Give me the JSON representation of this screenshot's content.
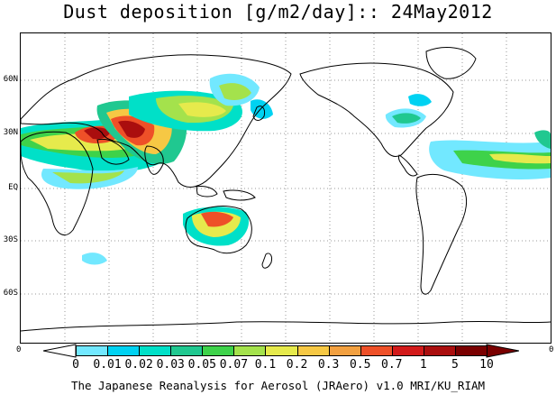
{
  "title": "Dust deposition [g/m2/day]:: 24May2012",
  "credit": "The Japanese Reanalysis for Aerosol (JRAero) v1.0 MRI/KU_RIAM",
  "lat_labels": [
    "60N",
    "30N",
    "EQ",
    "30S",
    "60S"
  ],
  "corner_labels": {
    "left": "0",
    "right": "0"
  },
  "colorbar": {
    "ticks": [
      "0",
      "0.01",
      "0.02",
      "0.03",
      "0.05",
      "0.07",
      "0.1",
      "0.2",
      "0.3",
      "0.5",
      "0.7",
      "1",
      "5",
      "10"
    ],
    "colors": [
      "#ffffff",
      "#72e8ff",
      "#00d2f2",
      "#00e0c8",
      "#20c890",
      "#3ed24a",
      "#a4e24c",
      "#e6ea4c",
      "#f6c844",
      "#f2a040",
      "#ee5028",
      "#d21a1a",
      "#aa0e0e",
      "#7a0000"
    ]
  },
  "map": {
    "projection": "equirectangular",
    "center_longitude": "180",
    "grid": "dotted 30 degree",
    "continent_color": "#ffffff",
    "coastline_color": "#000000"
  }
}
